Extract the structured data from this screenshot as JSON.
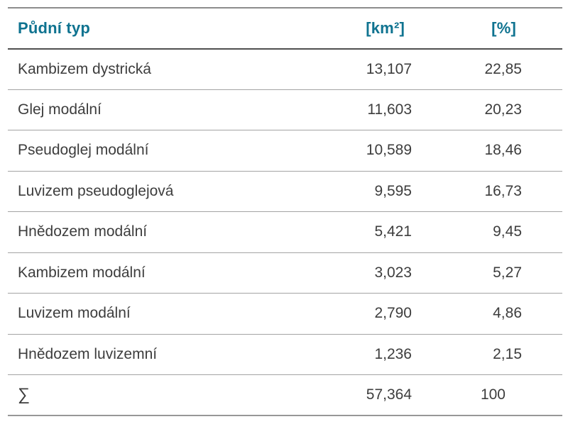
{
  "accent_color": "#0f7390",
  "table": {
    "header": {
      "type_label": "Půdní typ",
      "area_label": "[km²]",
      "percent_label": "[%]"
    },
    "rows": [
      {
        "name": "Kambizem dystrická",
        "area_km2": "13,107",
        "percent": "22,85"
      },
      {
        "name": "Glej modální",
        "area_km2": "11,603",
        "percent": "20,23"
      },
      {
        "name": "Pseudoglej modální",
        "area_km2": "10,589",
        "percent": "18,46"
      },
      {
        "name": "Luvizem pseudoglejová",
        "area_km2": "9,595",
        "percent": "16,73"
      },
      {
        "name": "Hnědozem modální",
        "area_km2": "5,421",
        "percent": "9,45"
      },
      {
        "name": "Kambizem modální",
        "area_km2": "3,023",
        "percent": "5,27"
      },
      {
        "name": "Luvizem modální",
        "area_km2": "2,790",
        "percent": "4,86"
      },
      {
        "name": "Hnědozem luvizemní",
        "area_km2": "1,236",
        "percent": "2,15"
      }
    ],
    "sum_row": {
      "name": "∑",
      "area_km2": "57,364",
      "percent": "100"
    }
  }
}
